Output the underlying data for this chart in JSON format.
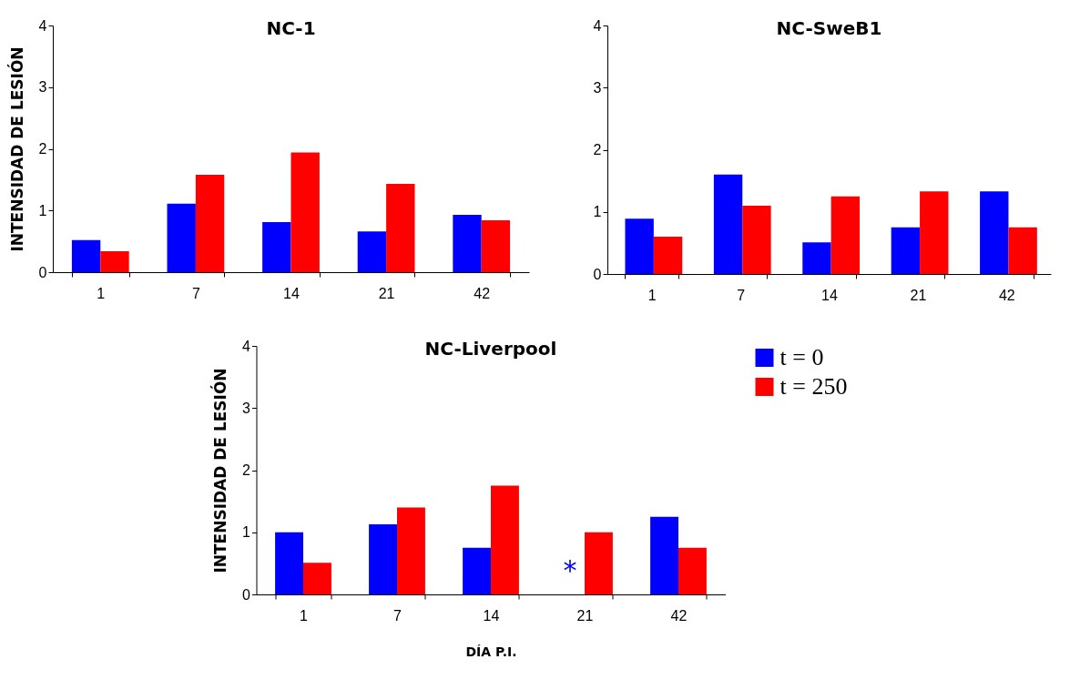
{
  "chart_data": [
    {
      "type": "bar",
      "title": "NC-1",
      "ylabel": "INTENSIDAD DE LESIÓN",
      "categories": [
        "1",
        "7",
        "14",
        "21",
        "42"
      ],
      "ylim": [
        0,
        4
      ],
      "yticks": [
        0,
        1,
        2,
        3,
        4
      ],
      "grid": false,
      "series": [
        {
          "color": "#0000ff",
          "values": [
            0.52,
            1.11,
            0.81,
            0.66,
            0.93
          ]
        },
        {
          "color": "#ff0000",
          "values": [
            0.34,
            1.58,
            1.94,
            1.43,
            0.84
          ]
        }
      ]
    },
    {
      "type": "bar",
      "title": "NC-SweB1",
      "categories": [
        "1",
        "7",
        "14",
        "21",
        "42"
      ],
      "ylim": [
        0,
        4
      ],
      "yticks": [
        0,
        1,
        2,
        3,
        4
      ],
      "grid": false,
      "series": [
        {
          "color": "#0000ff",
          "values": [
            0.89,
            1.6,
            0.51,
            0.75,
            1.33
          ]
        },
        {
          "color": "#ff0000",
          "values": [
            0.6,
            1.1,
            1.25,
            1.33,
            0.75
          ]
        }
      ]
    },
    {
      "type": "bar",
      "title": "NC-Liverpool",
      "xlabel": "DÍA P.I.",
      "ylabel": "INTENSIDAD DE LESIÓN",
      "categories": [
        "1",
        "7",
        "14",
        "21",
        "42"
      ],
      "ylim": [
        0,
        4
      ],
      "yticks": [
        0,
        1,
        2,
        3,
        4
      ],
      "grid": false,
      "legend": "top right",
      "series": [
        {
          "name": "t = 0",
          "color": "#0000ff",
          "values": [
            1.0,
            1.13,
            0.75,
            null,
            1.25
          ]
        },
        {
          "name": "t = 250",
          "color": "#ff0000",
          "values": [
            0.51,
            1.4,
            1.75,
            1.0,
            0.75
          ]
        }
      ],
      "annotations": [
        "*"
      ]
    }
  ]
}
